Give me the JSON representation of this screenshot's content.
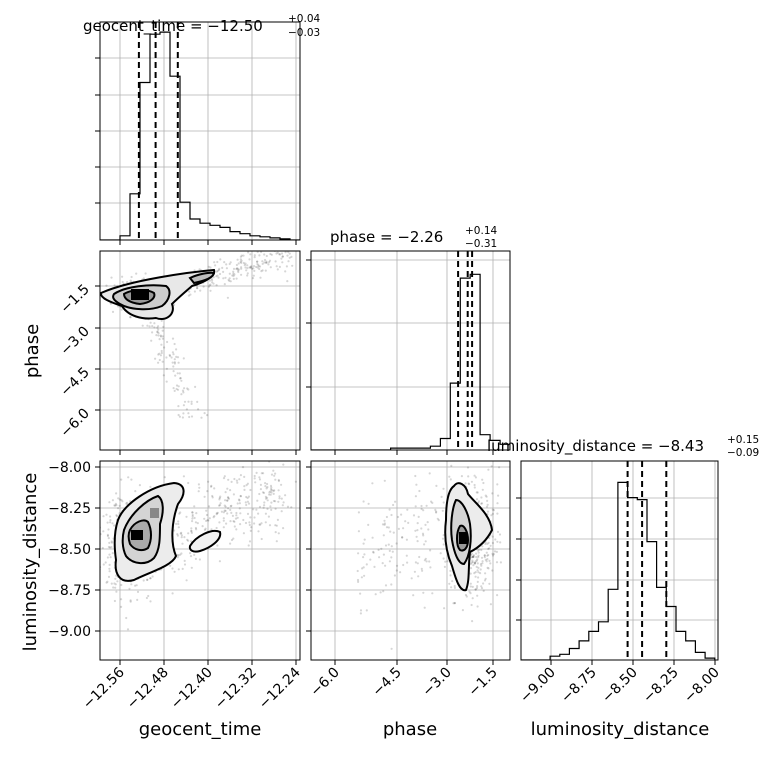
{
  "chart_data": {
    "type": "corner",
    "parameters": [
      "geocent_time",
      "phase",
      "luminosity_distance"
    ],
    "titles": [
      {
        "param": "geocent_time",
        "text": "geocent_time = −12.50",
        "plus": "+0.04",
        "minus": "−0.03"
      },
      {
        "param": "phase",
        "text": "phase = −2.26",
        "plus": "+0.14",
        "minus": "−0.31"
      },
      {
        "param": "luminosity_distance",
        "text": "luminosity_distance = −8.43",
        "plus": "+0.15",
        "minus": "−0.09"
      }
    ],
    "ranges": {
      "geocent_time": [
        -12.6,
        -12.24
      ],
      "phase": [
        -7.3,
        -0.9
      ],
      "luminosity_distance": [
        -9.18,
        -7.96
      ]
    },
    "quantiles": {
      "geocent_time": [
        -12.53,
        -12.5,
        -12.46
      ],
      "phase": [
        -2.57,
        -2.26,
        -2.12
      ],
      "luminosity_distance": [
        -8.52,
        -8.43,
        -8.28
      ]
    },
    "ticks": {
      "geocent_time": {
        "values": [
          -12.56,
          -12.48,
          -12.4,
          -12.32,
          -12.24
        ],
        "labels": [
          "−12.56",
          "−12.48",
          "−12.40",
          "−12.32",
          "−12.24"
        ]
      },
      "phase": {
        "values": [
          -6.0,
          -4.5,
          -3.0,
          -1.5
        ],
        "labels": [
          "−6.0",
          "−4.5",
          "−3.0",
          "−1.5"
        ]
      },
      "luminosity_distance": {
        "values": [
          -9.0,
          -8.75,
          -8.5,
          -8.25,
          -8.0
        ],
        "labels": [
          "−9.00",
          "−8.75",
          "−8.50",
          "−8.25",
          "−8.00"
        ]
      }
    },
    "axis_labels": {
      "geocent_time": "geocent_time",
      "phase": "phase",
      "luminosity_distance": "luminosity_distance"
    },
    "histograms": {
      "geocent_time": {
        "edges": [
          -12.6,
          -12.582,
          -12.564,
          -12.546,
          -12.528,
          -12.51,
          -12.492,
          -12.474,
          -12.456,
          -12.438,
          -12.42,
          -12.402,
          -12.384,
          -12.366,
          -12.348,
          -12.33,
          -12.312,
          -12.294,
          -12.276,
          -12.258,
          -12.24
        ],
        "counts": [
          0,
          0,
          0.02,
          0.22,
          0.75,
          0.98,
          0.99,
          0.78,
          0.18,
          0.1,
          0.08,
          0.07,
          0.06,
          0.04,
          0.03,
          0.02,
          0.015,
          0.01,
          0.005,
          0
        ]
      },
      "phase": {
        "edges": [
          -7.3,
          -6.98,
          -6.66,
          -6.34,
          -6.02,
          -5.7,
          -5.38,
          -5.06,
          -4.74,
          -4.42,
          -4.1,
          -3.78,
          -3.46,
          -3.14,
          -2.82,
          -2.5,
          -2.18,
          -1.86,
          -1.54,
          -1.22,
          -0.9
        ],
        "counts": [
          0,
          0,
          0,
          0,
          0,
          0,
          0,
          0,
          0.01,
          0.01,
          0.01,
          0.01,
          0.02,
          0.06,
          0.35,
          0.9,
          0.92,
          0.08,
          0.05,
          0.03
        ]
      },
      "luminosity_distance": {
        "edges": [
          -9.18,
          -9.12,
          -9.06,
          -9.0,
          -8.94,
          -8.88,
          -8.82,
          -8.76,
          -8.7,
          -8.64,
          -8.58,
          -8.52,
          -8.46,
          -8.4,
          -8.34,
          -8.28,
          -8.22,
          -8.16,
          -8.1,
          -8.04,
          -7.98
        ],
        "counts": [
          0,
          0,
          0,
          0.02,
          0.03,
          0.06,
          0.1,
          0.15,
          0.2,
          0.37,
          0.93,
          0.85,
          0.84,
          0.62,
          0.38,
          0.28,
          0.15,
          0.1,
          0.04,
          0.01
        ]
      }
    },
    "density_modes": [
      {
        "x": "geocent_time",
        "y": "phase",
        "mode": [
          -12.54,
          -2.35
        ]
      },
      {
        "x": "geocent_time",
        "y": "luminosity_distance",
        "mode": [
          -12.55,
          -8.42
        ]
      },
      {
        "x": "phase",
        "y": "luminosity_distance",
        "mode": [
          -2.15,
          -8.46
        ]
      }
    ],
    "grid": true,
    "quantile_linestyle": "dashed"
  }
}
